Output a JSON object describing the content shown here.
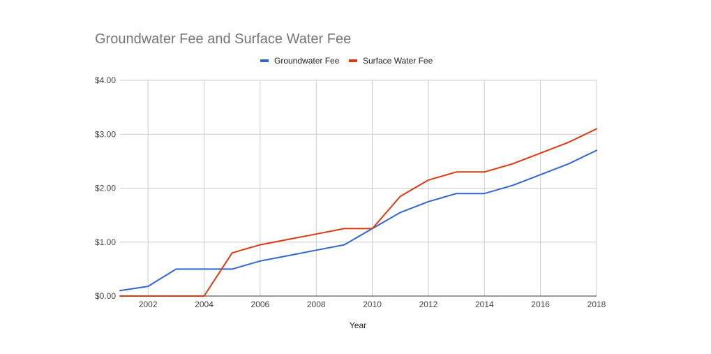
{
  "chart_data": {
    "type": "line",
    "title": "Groundwater Fee and Surface Water Fee",
    "xlabel": "Year",
    "ylabel": "",
    "xlim": [
      2001,
      2018
    ],
    "ylim": [
      0,
      4
    ],
    "x_ticks": [
      2002,
      2004,
      2006,
      2008,
      2010,
      2012,
      2014,
      2016,
      2018
    ],
    "y_ticks": [
      "$0.00",
      "$1.00",
      "$2.00",
      "$3.00",
      "$4.00"
    ],
    "y_tick_values": [
      0,
      1,
      2,
      3,
      4
    ],
    "grid": true,
    "legend_position": "top",
    "x": [
      2001,
      2002,
      2003,
      2004,
      2005,
      2006,
      2007,
      2008,
      2009,
      2010,
      2011,
      2012,
      2013,
      2014,
      2015,
      2016,
      2017,
      2018
    ],
    "series": [
      {
        "name": "Groundwater Fee",
        "color": "#3366cc",
        "values": [
          0.1,
          0.18,
          0.5,
          0.5,
          0.5,
          0.65,
          0.75,
          0.85,
          0.95,
          1.25,
          1.55,
          1.75,
          1.9,
          1.9,
          2.05,
          2.25,
          2.45,
          2.7
        ]
      },
      {
        "name": "Surface Water Fee",
        "color": "#dc3912",
        "values": [
          0.0,
          0.0,
          0.0,
          0.0,
          0.8,
          0.95,
          1.05,
          1.15,
          1.25,
          1.25,
          1.85,
          2.15,
          2.3,
          2.3,
          2.45,
          2.65,
          2.85,
          3.1
        ]
      }
    ]
  }
}
